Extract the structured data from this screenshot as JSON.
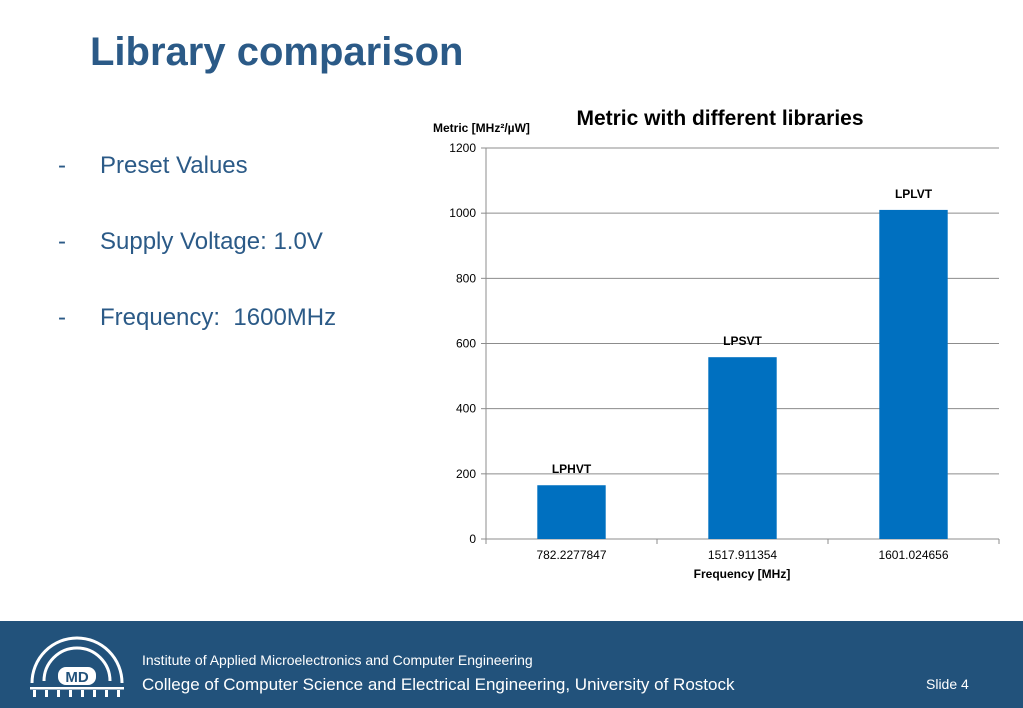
{
  "slide": {
    "title": "Library comparison"
  },
  "bullets": [
    {
      "dash": "-",
      "text": "Preset Values"
    },
    {
      "dash": "-",
      "text": "Supply Voltage: 1.0V"
    },
    {
      "dash": "-",
      "text": "Frequency:  1600MHz"
    }
  ],
  "chart_data": {
    "type": "bar",
    "title": "Metric with different libraries",
    "xlabel": "Frequency [MHz]",
    "ylabel": "Metric [MHz²/µW]",
    "categories": [
      "782.2277847",
      "1517.911354",
      "1601.024656"
    ],
    "values": [
      165,
      558,
      1010
    ],
    "data_labels": [
      "LPHVT",
      "LPSVT",
      "LPLVT"
    ],
    "ylim": [
      0,
      1200
    ],
    "yticks": [
      0,
      200,
      400,
      600,
      800,
      1000,
      1200
    ],
    "grid": true,
    "legend": "none",
    "bar_color": "#0070c0"
  },
  "footer": {
    "logo_text": "MD",
    "line1": "Institute of Applied Microelectronics and Computer Engineering",
    "line2": "College of Computer Science and Electrical Engineering, University of Rostock",
    "slide_number": "Slide 4"
  },
  "colors": {
    "title": "#2b5a87",
    "footer_bg": "#22527b",
    "bar": "#0070c0"
  }
}
